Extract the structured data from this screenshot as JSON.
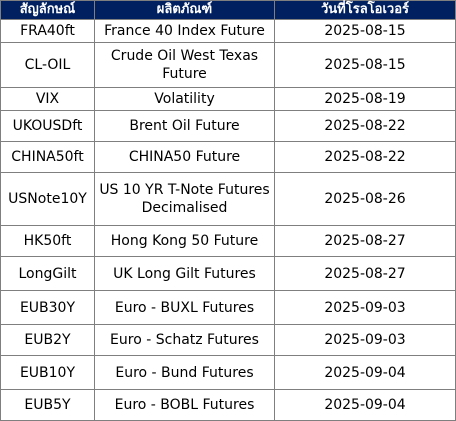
{
  "table": {
    "headers": {
      "symbol": "สัญลักษณ์",
      "product": "ผลิตภัณฑ์",
      "rollover_date": "วันที่โรลโอเวอร์"
    },
    "rows": [
      {
        "symbol": "FRA40ft",
        "product": "France 40 Index Future",
        "date": "2025-08-15"
      },
      {
        "symbol": "CL-OIL",
        "product": "Crude Oil West Texas Future",
        "date": "2025-08-15"
      },
      {
        "symbol": "VIX",
        "product": "Volatility",
        "date": "2025-08-19"
      },
      {
        "symbol": "UKOUSDft",
        "product": "Brent Oil Future",
        "date": "2025-08-22"
      },
      {
        "symbol": "CHINA50ft",
        "product": "CHINA50 Future",
        "date": "2025-08-22"
      },
      {
        "symbol": "USNote10Y",
        "product": "US 10 YR T-Note Futures Decimalised",
        "date": "2025-08-26"
      },
      {
        "symbol": "HK50ft",
        "product": "Hong Kong 50 Future",
        "date": "2025-08-27"
      },
      {
        "symbol": "LongGilt",
        "product": "UK Long Gilt Futures",
        "date": "2025-08-27"
      },
      {
        "symbol": "EUB30Y",
        "product": "Euro - BUXL Futures",
        "date": "2025-09-03"
      },
      {
        "symbol": "EUB2Y",
        "product": "Euro - Schatz Futures",
        "date": "2025-09-03"
      },
      {
        "symbol": "EUB10Y",
        "product": "Euro - Bund Futures",
        "date": "2025-09-04"
      },
      {
        "symbol": "EUB5Y",
        "product": "Euro - BOBL Futures",
        "date": "2025-09-04"
      }
    ]
  }
}
